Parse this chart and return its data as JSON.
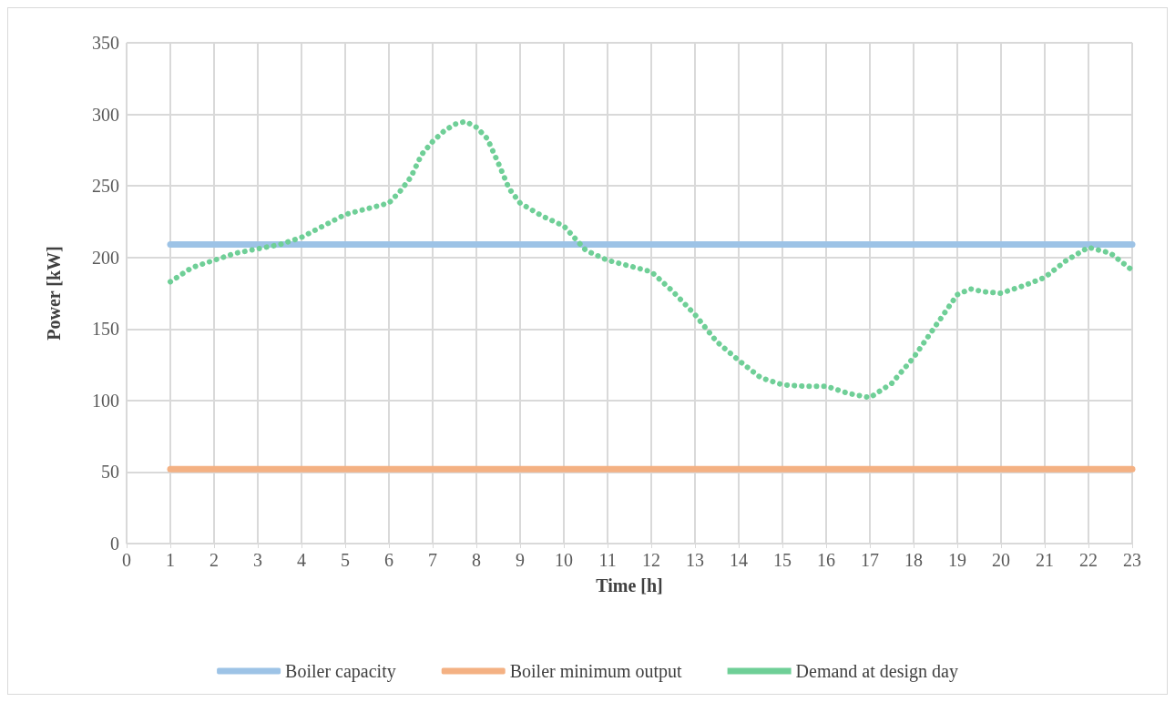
{
  "chart_data": {
    "type": "line",
    "xlabel": "Time [h]",
    "ylabel": "Power [kW]",
    "xlim": [
      0,
      23
    ],
    "xticks": [
      0,
      1,
      2,
      3,
      4,
      5,
      6,
      7,
      8,
      9,
      10,
      11,
      12,
      13,
      14,
      15,
      16,
      17,
      18,
      19,
      20,
      21,
      22,
      23
    ],
    "ylim": [
      0,
      350
    ],
    "yticks": [
      0,
      50,
      100,
      150,
      200,
      250,
      300,
      350
    ],
    "grid": true,
    "legend": "bottom",
    "marker": "none",
    "series": [
      {
        "name": "Boiler capacity",
        "color": "#9dc3e6",
        "line_style": "solid",
        "x": [
          1,
          23
        ],
        "values": [
          209,
          209
        ]
      },
      {
        "name": "Boiler minimum output",
        "color": "#f4b183",
        "line_style": "solid",
        "x": [
          1,
          23
        ],
        "values": [
          52,
          52
        ]
      },
      {
        "name": "Demand at design day",
        "color": "#6fcf97",
        "line_style": "dotted",
        "x": [
          1,
          1.5,
          2,
          2.5,
          3,
          3.5,
          4,
          4.5,
          5,
          5.5,
          6,
          6.25,
          6.5,
          6.75,
          7,
          7.25,
          7.5,
          7.75,
          8,
          8.25,
          8.5,
          8.75,
          9,
          9.5,
          10,
          10.5,
          11,
          11.5,
          12,
          12.5,
          13,
          13.5,
          14,
          14.5,
          15,
          15.5,
          16,
          16.5,
          17,
          17.5,
          18,
          18.5,
          19,
          19.3,
          19.6,
          20,
          20.5,
          21,
          21.5,
          22,
          22.5,
          23
        ],
        "values": [
          183,
          193,
          198,
          203,
          206,
          209,
          214,
          222,
          230,
          234,
          238,
          246,
          256,
          272,
          281,
          288,
          293,
          295,
          291,
          283,
          266,
          248,
          238,
          229,
          222,
          205,
          198,
          194,
          190,
          176,
          160,
          141,
          128,
          116,
          111,
          110,
          110,
          105,
          102,
          112,
          130,
          152,
          174,
          178,
          176,
          175,
          180,
          186,
          198,
          207,
          203,
          191
        ]
      }
    ]
  }
}
